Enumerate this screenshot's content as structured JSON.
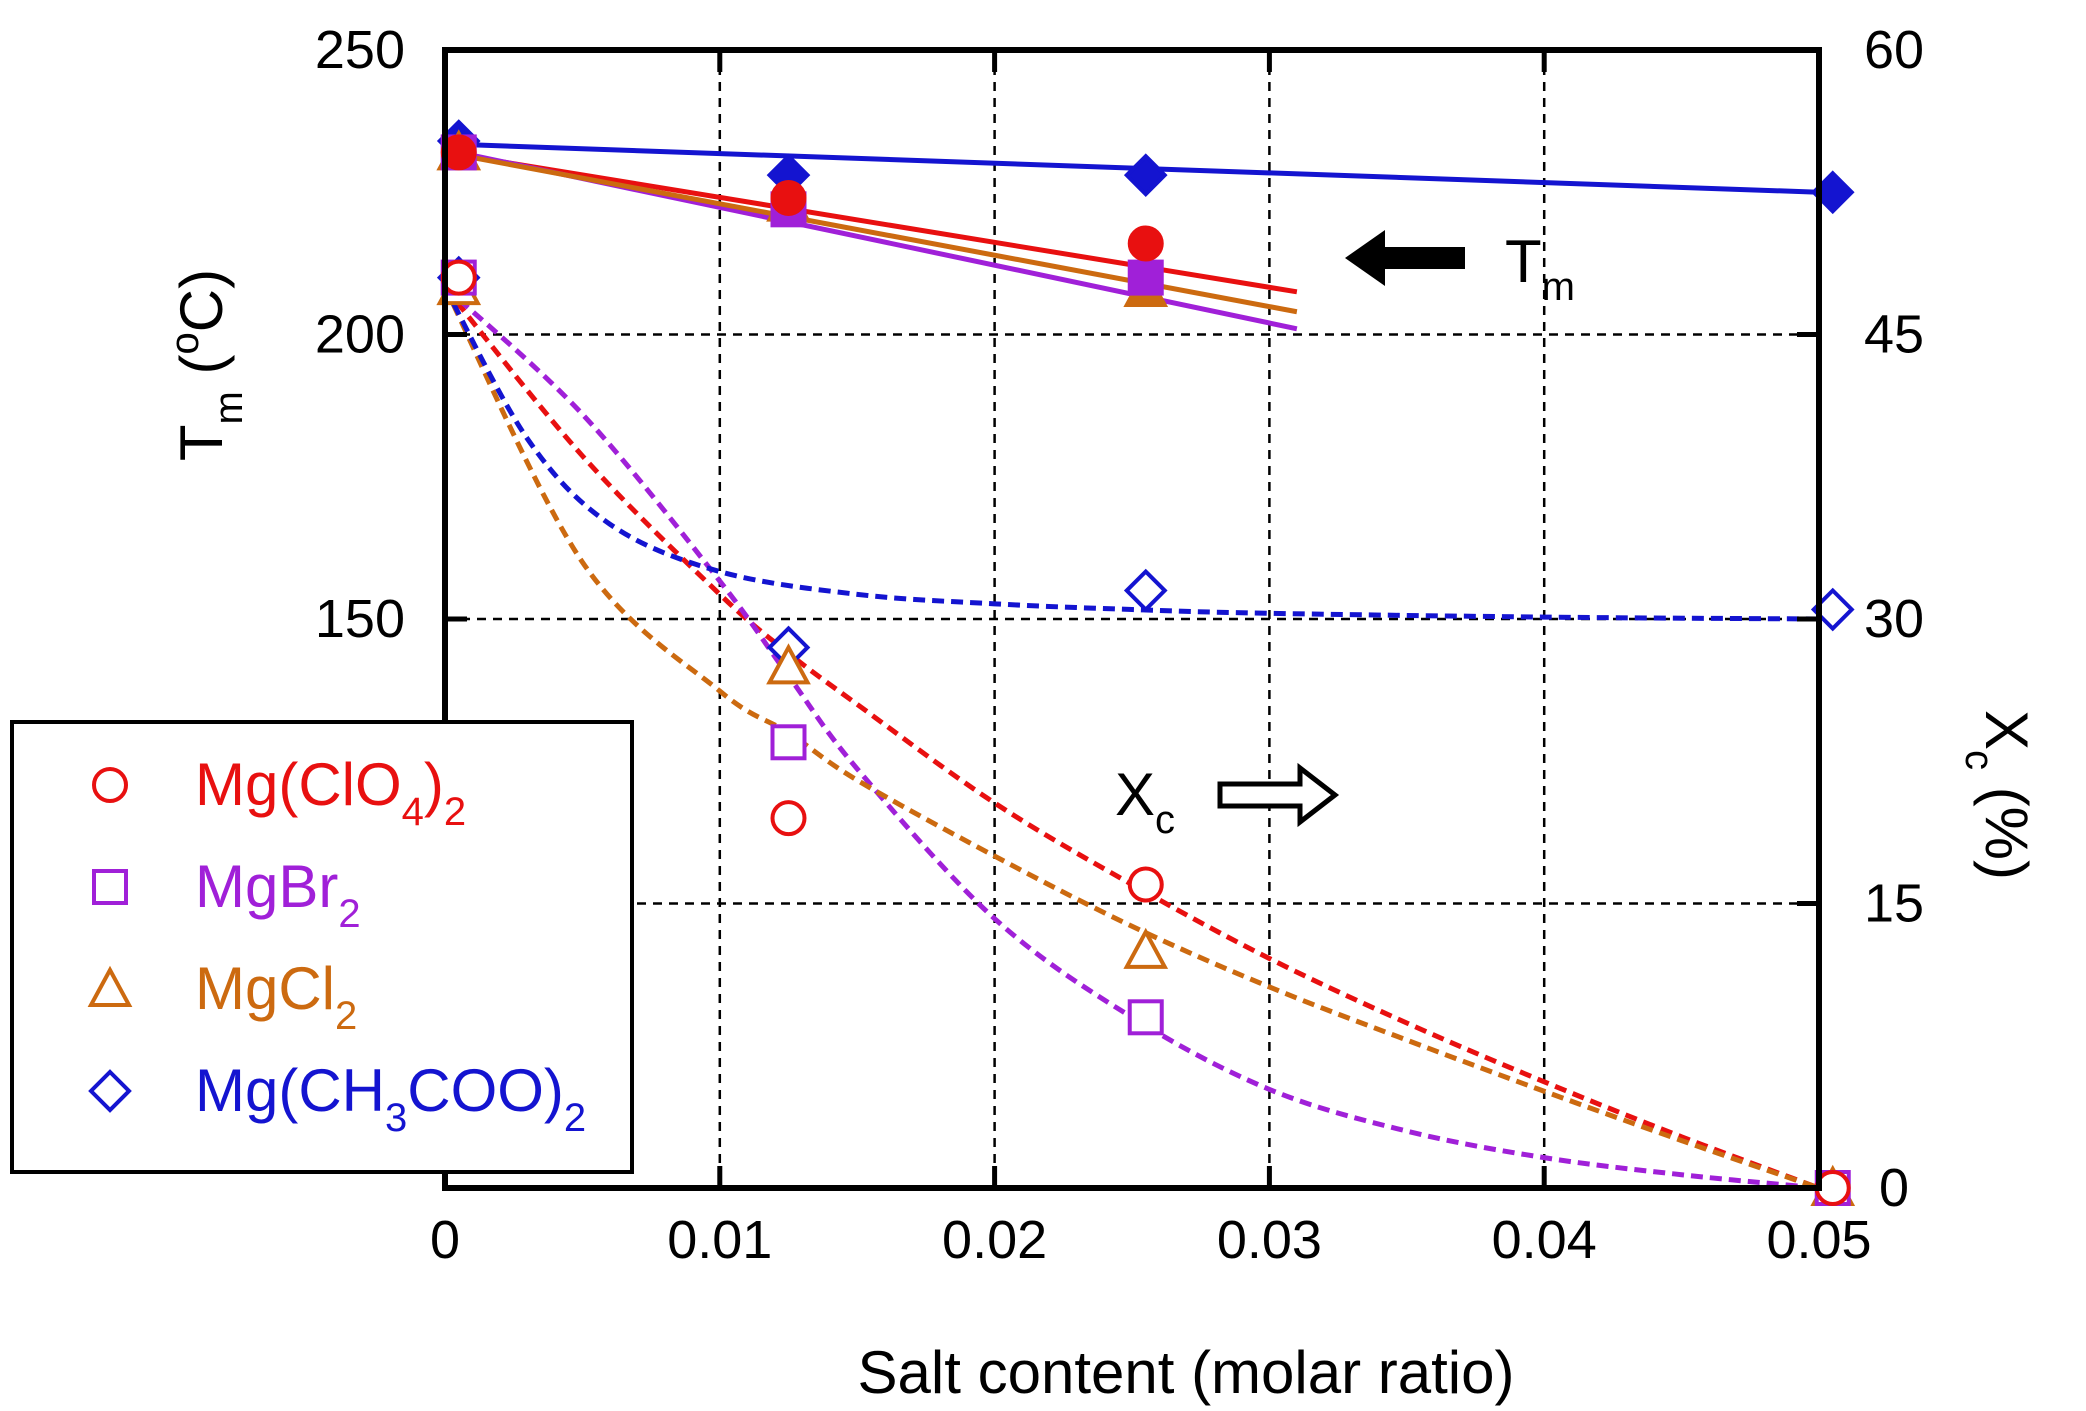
{
  "chart_data": {
    "type": "scatter",
    "xlabel": "Salt content (molar ratio)",
    "x_ticks": [
      "0",
      "0.01",
      "0.02",
      "0.03",
      "0.04",
      "0.05"
    ],
    "xlim": [
      0,
      0.05
    ],
    "left_axis": {
      "label_main": "T",
      "label_sub": "m",
      "label_unit_open": " (",
      "label_sup": "o",
      "label_unit_close": "C)",
      "ylim": [
        50,
        250
      ],
      "ticks": [
        "250",
        "200",
        "150"
      ]
    },
    "right_axis": {
      "label_main": "X",
      "label_sub": "c",
      "label_unit": " (%)",
      "ylim": [
        0,
        60
      ],
      "ticks": [
        "60",
        "45",
        "30",
        "15",
        "0"
      ]
    },
    "grid": true,
    "annotations": {
      "tm": {
        "main": "T",
        "sub": "m",
        "direction": "left"
      },
      "xc": {
        "main": "X",
        "sub": "c",
        "direction": "right"
      }
    },
    "legend": {
      "position": "left",
      "entries": [
        {
          "label": "Mg(ClO",
          "sub": "4",
          "close": ")",
          "sub2": "2",
          "marker": "circle",
          "color": "#e81010"
        },
        {
          "label": "MgBr",
          "sub": "2",
          "close": "",
          "sub2": "",
          "marker": "square",
          "color": "#a020d8"
        },
        {
          "label": "MgCl",
          "sub": "2",
          "close": "",
          "sub2": "",
          "marker": "triangle",
          "color": "#cc6a10"
        },
        {
          "label": "Mg(CH",
          "sub": "3",
          "close": "COO)",
          "sub2": "2",
          "marker": "diamond",
          "color": "#1414d0"
        }
      ]
    },
    "series": [
      {
        "name": "Mg(ClO4)2",
        "color": "#e81010",
        "marker": "circle",
        "tm": {
          "x": [
            0.0005,
            0.0125,
            0.0255
          ],
          "y": [
            232,
            224,
            216
          ]
        },
        "tm_fit": {
          "x": [
            0,
            0.031
          ],
          "y": [
            232,
            207.5
          ]
        },
        "xc": {
          "x": [
            0.0005,
            0.0125,
            0.0255,
            0.0505
          ],
          "y": [
            48,
            19.5,
            16,
            0
          ]
        },
        "xc_fit": {
          "x": [
            0,
            0.005,
            0.01,
            0.0125,
            0.015,
            0.02,
            0.025,
            0.03,
            0.035,
            0.04,
            0.045,
            0.05
          ],
          "y": [
            47.5,
            38.6,
            31.3,
            28.2,
            25.5,
            20.3,
            16.0,
            12.1,
            8.7,
            5.6,
            2.7,
            0
          ]
        }
      },
      {
        "name": "MgBr2",
        "color": "#a020d8",
        "marker": "square",
        "tm": {
          "x": [
            0.0005,
            0.0125,
            0.0255
          ],
          "y": [
            232,
            222,
            210
          ]
        },
        "tm_fit": {
          "x": [
            0,
            0.031
          ],
          "y": [
            232.5,
            201
          ]
        },
        "xc": {
          "x": [
            0.0005,
            0.0125,
            0.0255,
            0.0505
          ],
          "y": [
            48,
            23.5,
            9,
            0
          ]
        },
        "xc_fit": {
          "x": [
            0,
            0.005,
            0.01,
            0.0125,
            0.015,
            0.02,
            0.025,
            0.03,
            0.035,
            0.04,
            0.045,
            0.05
          ],
          "y": [
            47.5,
            40.8,
            32.0,
            27.0,
            22.1,
            14.2,
            9.0,
            5.2,
            3.0,
            1.6,
            0.7,
            0
          ]
        }
      },
      {
        "name": "MgCl2",
        "color": "#cc6a10",
        "marker": "triangle",
        "tm": {
          "x": [
            0.0005,
            0.0125,
            0.0255
          ],
          "y": [
            232,
            223,
            208
          ]
        },
        "tm_fit": {
          "x": [
            0,
            0.031
          ],
          "y": [
            232,
            204
          ]
        },
        "xc": {
          "x": [
            0.0005,
            0.0125,
            0.0255,
            0.0505
          ],
          "y": [
            47.5,
            27.5,
            12.5,
            0
          ]
        },
        "xc_fit": {
          "x": [
            0,
            0.005,
            0.01,
            0.0125,
            0.015,
            0.02,
            0.025,
            0.03,
            0.035,
            0.04,
            0.045,
            0.05
          ],
          "y": [
            47.5,
            33.0,
            26.2,
            24.0,
            21.5,
            17.5,
            13.8,
            10.6,
            7.8,
            5.1,
            2.5,
            0
          ]
        }
      },
      {
        "name": "Mg(CH3COO)2",
        "color": "#1414d0",
        "marker": "diamond",
        "tm": {
          "x": [
            0.0005,
            0.0125,
            0.0255,
            0.0505
          ],
          "y": [
            234,
            228,
            228,
            225
          ]
        },
        "tm_fit": {
          "x": [
            0,
            0.05
          ],
          "y": [
            233.5,
            225
          ]
        },
        "xc": {
          "x": [
            0.0005,
            0.0125,
            0.0255,
            0.0505
          ],
          "y": [
            48,
            28.5,
            31.5,
            30.5
          ]
        },
        "xc_fit": {
          "x": [
            0,
            0.003,
            0.006,
            0.01,
            0.015,
            0.02,
            0.025,
            0.03,
            0.04,
            0.05
          ],
          "y": [
            47.5,
            39.5,
            35.0,
            32.5,
            31.3,
            30.8,
            30.5,
            30.3,
            30.1,
            30.0
          ]
        }
      }
    ]
  }
}
